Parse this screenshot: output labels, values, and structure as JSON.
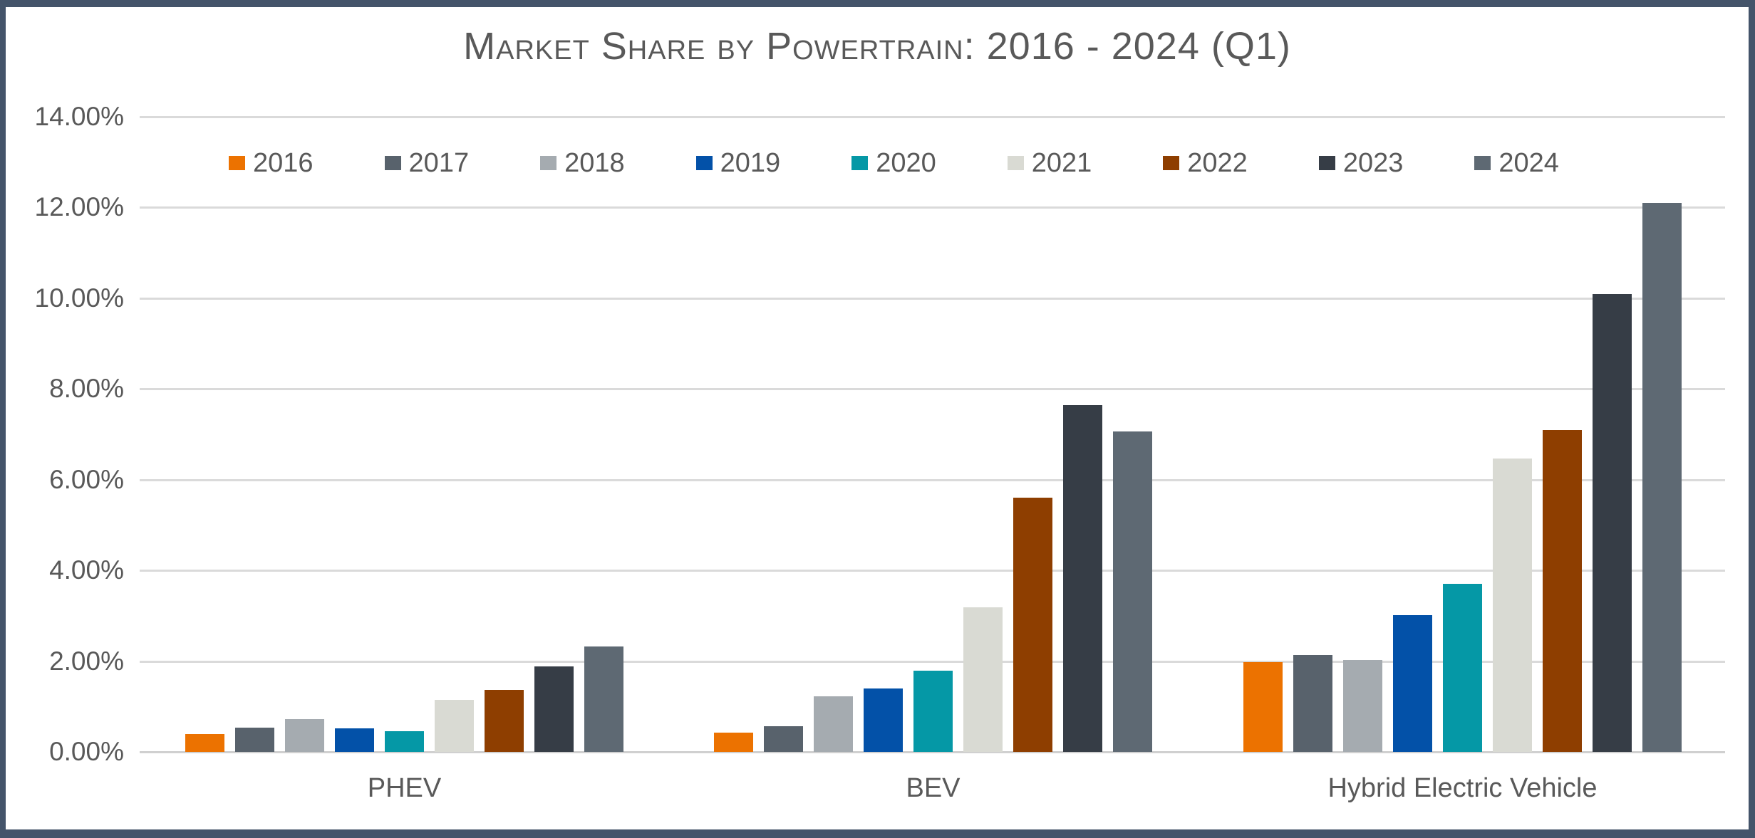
{
  "title": "Market Share by Powertrain: 2016 - 2024 (Q1)",
  "chart_data": {
    "type": "bar",
    "title": "Market Share by Powertrain: 2016 - 2024 (Q1)",
    "categories": [
      "PHEV",
      "BEV",
      "Hybrid Electric Vehicle"
    ],
    "series": [
      {
        "name": "2016",
        "color": "#EC7200",
        "values": [
          0.4,
          0.43,
          1.97
        ]
      },
      {
        "name": "2017",
        "color": "#58626C",
        "values": [
          0.54,
          0.56,
          2.13
        ]
      },
      {
        "name": "2018",
        "color": "#A5ABB0",
        "values": [
          0.73,
          1.22,
          2.02
        ]
      },
      {
        "name": "2019",
        "color": "#0351A8",
        "values": [
          0.52,
          1.4,
          3.02
        ]
      },
      {
        "name": "2020",
        "color": "#0598A6",
        "values": [
          0.46,
          1.79,
          3.7
        ]
      },
      {
        "name": "2021",
        "color": "#D9DAD3",
        "values": [
          1.15,
          3.18,
          6.46
        ]
      },
      {
        "name": "2022",
        "color": "#8E3E00",
        "values": [
          1.36,
          5.61,
          7.1
        ]
      },
      {
        "name": "2023",
        "color": "#363D46",
        "values": [
          1.89,
          7.64,
          10.1
        ]
      },
      {
        "name": "2024",
        "color": "#5E6973",
        "values": [
          2.32,
          7.06,
          12.1
        ]
      }
    ],
    "y_ticks": [
      "14.00%",
      "12.00%",
      "10.00%",
      "8.00%",
      "6.00%",
      "4.00%",
      "2.00%",
      "0.00%"
    ],
    "ylim": [
      0,
      14
    ],
    "grid": true,
    "legend_position": "top",
    "xlabel": "",
    "ylabel": ""
  },
  "colors": {
    "border": "#44546A",
    "grid": "#DADADA",
    "text": "#595959",
    "background": "#FFFFFF"
  }
}
